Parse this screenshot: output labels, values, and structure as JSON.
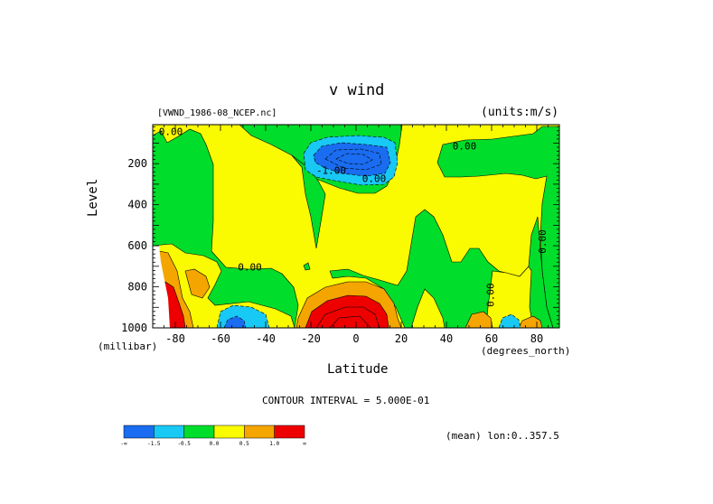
{
  "chart_data": {
    "type": "heatmap",
    "title": "v wind",
    "file_label": "[VWND_1986-08_NCEP.nc]",
    "units_label": "(units:m/s)",
    "xlabel": "Latitude",
    "x_units": "(degrees_north)",
    "ylabel": "Level",
    "y_units": "(millibar)",
    "xlim": [
      -90,
      90
    ],
    "ylim": [
      1000,
      10
    ],
    "x_ticks": [
      -80,
      -60,
      -40,
      -20,
      0,
      20,
      40,
      60,
      80
    ],
    "y_ticks": [
      200,
      400,
      600,
      800,
      1000
    ],
    "contour_interval_text": "CONTOUR INTERVAL = 5.000E-01",
    "subset_text": "(mean) lon:0..357.5",
    "contour_labels": [
      {
        "text": "0.00",
        "lat": -82,
        "level": 60
      },
      {
        "text": "0.00",
        "lat": 48,
        "level": 130
      },
      {
        "text": "-1.00",
        "lat": -11,
        "level": 250
      },
      {
        "text": "0.00",
        "lat": 8,
        "level": 290
      },
      {
        "text": "0.00",
        "lat": 84,
        "level": 580
      },
      {
        "text": "0.00",
        "lat": -47,
        "level": 720
      },
      {
        "text": "0.00",
        "lat": 61,
        "level": 840
      }
    ],
    "levels": [
      -1.5,
      -0.5,
      0.0,
      0.5,
      1.0
    ],
    "colorbar": {
      "colors": [
        "#1a6cf0",
        "#18c8f5",
        "#00dd2a",
        "#fafa00",
        "#f5a500",
        "#ee0000"
      ],
      "tick_labels": [
        "-∞",
        "-1.5",
        "-0.5",
        "0.0",
        "0.5",
        "1.0",
        "∞"
      ]
    }
  }
}
